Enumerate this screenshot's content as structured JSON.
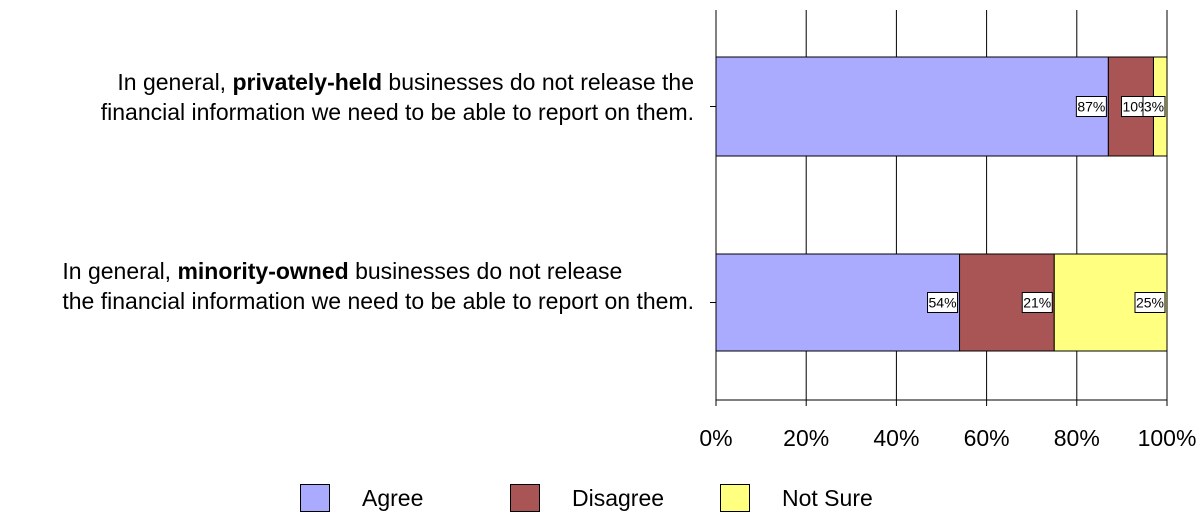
{
  "chart_data": {
    "type": "bar",
    "orientation": "horizontal",
    "stacked": true,
    "categories": [
      {
        "line1_pre": "In general, ",
        "line1_bold": "privately-held",
        "line1_post": " businesses do not release the",
        "line2": "financial information we need to be able to report on them."
      },
      {
        "line1_pre": "In general, ",
        "line1_bold": "minority-owned",
        "line1_post": " businesses do not release",
        "line2": "the financial information we need to be able to report on them."
      }
    ],
    "series": [
      {
        "name": "Agree",
        "color": "#aaaaff",
        "values": [
          87,
          54
        ],
        "labels": [
          "87%",
          "54%"
        ]
      },
      {
        "name": "Disagree",
        "color": "#aa5555",
        "values": [
          10,
          21
        ],
        "labels": [
          "10%",
          "21%"
        ]
      },
      {
        "name": "Not Sure",
        "color": "#ffff80",
        "values": [
          3,
          25
        ],
        "labels": [
          "3%",
          "25%"
        ]
      }
    ],
    "xlim": [
      0,
      100
    ],
    "xticks": [
      "0%",
      "20%",
      "40%",
      "60%",
      "80%",
      "100%"
    ],
    "grid": true,
    "legend_position": "bottom"
  }
}
